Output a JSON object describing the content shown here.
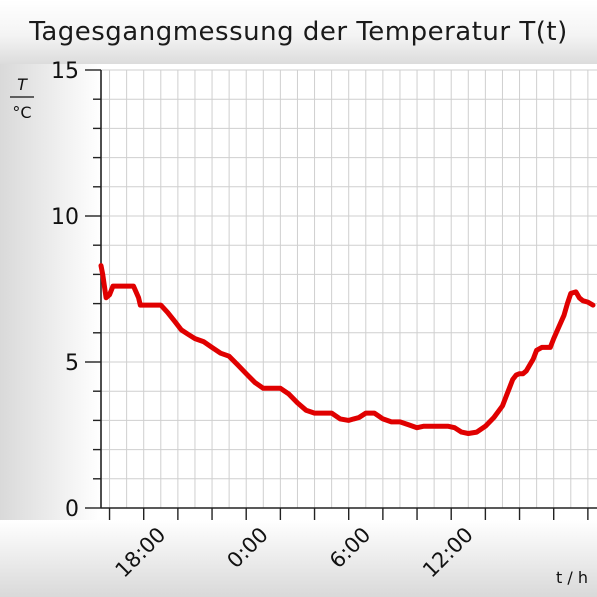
{
  "chart_data": {
    "type": "line",
    "title": "Tagesgangmessung der Temperatur T(t)",
    "ylabel_symbol": "T",
    "ylabel_unit": "°C",
    "xlabel": "t / h",
    "ylim": [
      0,
      15
    ],
    "y_ticks": [
      "0",
      "5",
      "10",
      "15"
    ],
    "x_ticks": [
      "18:00",
      "0:00",
      "6:00",
      "12:00"
    ],
    "x_unit": "hours since 12:00 of day 1 (time of day on axis)",
    "grid": true,
    "series": [
      {
        "color": "#e00000",
        "x": [
          2.5,
          2.6,
          2.7,
          2.8,
          3.0,
          3.2,
          3.35,
          3.5,
          3.7,
          4.0,
          4.4,
          4.7,
          4.8,
          4.9,
          5.2,
          5.6,
          6.0,
          6.4,
          6.8,
          7.2,
          7.6,
          8.0,
          8.5,
          9.0,
          9.5,
          10.0,
          10.5,
          11.0,
          11.5,
          12.0,
          12.5,
          13.0,
          13.5,
          14.0,
          14.5,
          15.0,
          15.5,
          16.0,
          16.5,
          17.0,
          17.3,
          17.6,
          18.0,
          18.5,
          19.0,
          19.5,
          20.0,
          20.5,
          21.0,
          21.4,
          21.8,
          22.0,
          22.4,
          22.8,
          23.2,
          23.6,
          24.0,
          24.5,
          25.0,
          25.5,
          26.0,
          26.2,
          26.4,
          26.6,
          26.8,
          27.0,
          27.2,
          27.4,
          27.6,
          27.8,
          28.0,
          28.3,
          28.6,
          28.8,
          29.0,
          29.3,
          29.6,
          29.8,
          30.0,
          30.3,
          30.5,
          30.7,
          31.0,
          31.3
        ],
        "y": [
          8.3,
          8.0,
          7.6,
          7.2,
          7.3,
          7.6,
          7.6,
          7.6,
          7.6,
          7.6,
          7.6,
          7.2,
          6.95,
          6.95,
          6.95,
          6.95,
          6.95,
          6.7,
          6.4,
          6.1,
          5.95,
          5.8,
          5.7,
          5.5,
          5.3,
          5.2,
          4.9,
          4.6,
          4.3,
          4.1,
          4.1,
          4.1,
          3.9,
          3.6,
          3.35,
          3.25,
          3.25,
          3.25,
          3.05,
          3.0,
          3.05,
          3.1,
          3.25,
          3.25,
          3.05,
          2.95,
          2.95,
          2.85,
          2.75,
          2.8,
          2.8,
          2.8,
          2.8,
          2.8,
          2.75,
          2.6,
          2.55,
          2.6,
          2.8,
          3.1,
          3.5,
          3.8,
          4.1,
          4.4,
          4.55,
          4.6,
          4.6,
          4.7,
          4.9,
          5.1,
          5.4,
          5.5,
          5.5,
          5.5,
          5.8,
          6.2,
          6.6,
          7.0,
          7.35,
          7.4,
          7.2,
          7.1,
          7.05,
          6.95
        ]
      }
    ]
  }
}
